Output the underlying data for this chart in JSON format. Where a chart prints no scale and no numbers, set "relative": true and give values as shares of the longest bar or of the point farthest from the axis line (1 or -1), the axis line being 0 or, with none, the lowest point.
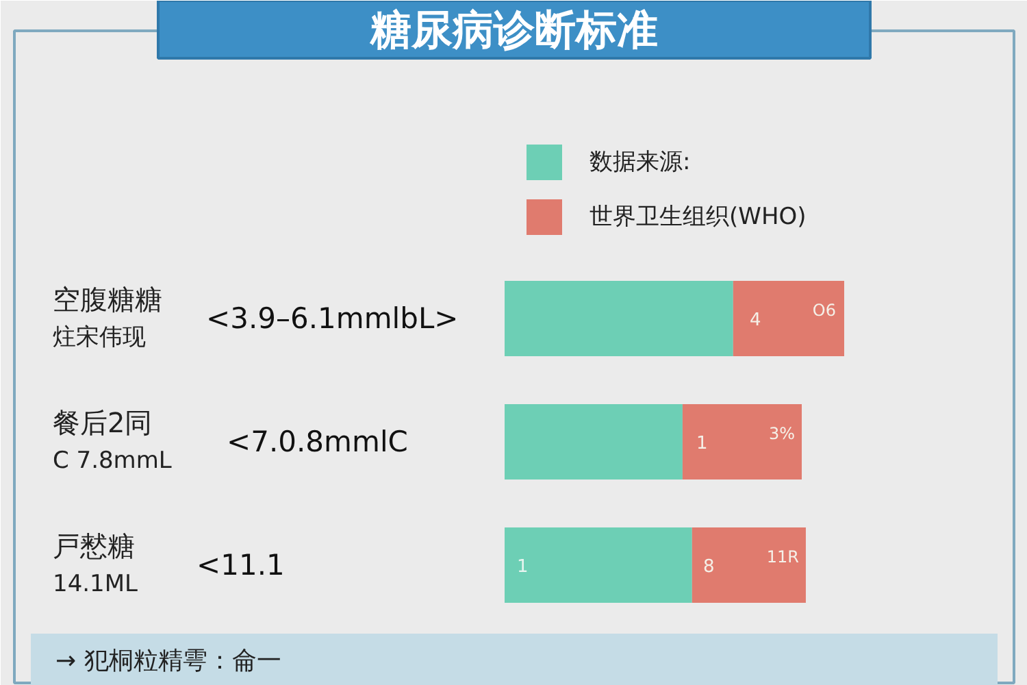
{
  "chart_data": {
    "type": "bar",
    "title": "糖尿病诊断标准",
    "orientation": "horizontal",
    "stacked": true,
    "relative": true,
    "legend": "top right",
    "categories": [
      "空腹糖糖",
      "餐后2同",
      "戸慭糖"
    ],
    "series": [
      {
        "name": "数据来源:",
        "color": "#6dcfb5",
        "values": [
          0.673,
          0.524,
          0.552
        ]
      },
      {
        "name": "世界卫生组织(WHO)",
        "color": "#e07b6e",
        "values": [
          0.327,
          0.351,
          0.335
        ]
      }
    ],
    "annotations": [
      "炷宋伟现",
      "C 7.8mmL",
      "14.1ML",
      "<3.9–6.1mmlbL>",
      "<7.0.8mmlC",
      "<11.1",
      "4",
      "O6",
      "1",
      "3%",
      "1",
      "8",
      "11R",
      "→ 犯桐粒精雩：侖一"
    ]
  }
}
